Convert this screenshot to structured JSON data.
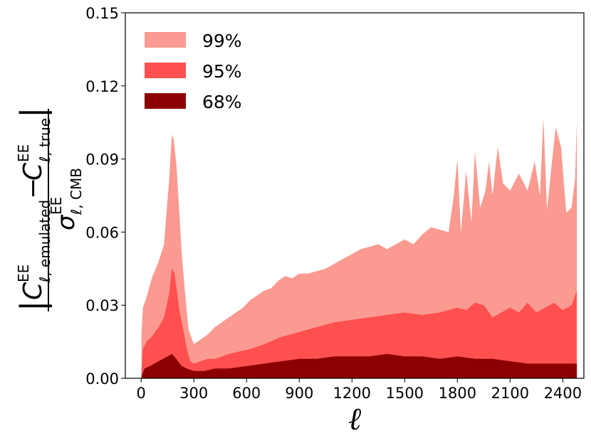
{
  "chart_data": {
    "type": "area",
    "title": "",
    "xlabel": "ℓ",
    "ylabel": {
      "numerator_left": {
        "base": "C",
        "sup": "EE",
        "sub_italic": "ℓ",
        "sub_text": ", emulated"
      },
      "minus": "−",
      "numerator_right": {
        "base": "C",
        "sup": "EE",
        "sub_italic": "ℓ",
        "sub_text": ", true"
      },
      "denominator": {
        "base": "σ",
        "sup": "EE",
        "sub_italic": "ℓ",
        "sub_text": ", CMB"
      },
      "bar": "|"
    },
    "xlim": [
      -90,
      2520
    ],
    "ylim": [
      0,
      0.15
    ],
    "xticks": [
      0,
      300,
      600,
      900,
      1200,
      1500,
      1800,
      2100,
      2400
    ],
    "xtick_labels": [
      "0",
      "300",
      "600",
      "900",
      "1200",
      "1500",
      "1800",
      "2100",
      "2400"
    ],
    "yticks": [
      0,
      0.03,
      0.06,
      0.09,
      0.12,
      0.15
    ],
    "ytick_labels": [
      "0.00",
      "0.03",
      "0.06",
      "0.09",
      "0.12",
      "0.15"
    ],
    "grid": false,
    "legend_position": "top-left",
    "series": [
      {
        "name": "99%",
        "color": "#fa9a90",
        "x": [
          2,
          10,
          30,
          60,
          100,
          130,
          160,
          175,
          185,
          200,
          215,
          230,
          250,
          270,
          300,
          340,
          380,
          420,
          460,
          500,
          540,
          580,
          620,
          660,
          700,
          740,
          780,
          820,
          860,
          900,
          950,
          1000,
          1050,
          1100,
          1150,
          1200,
          1250,
          1300,
          1350,
          1400,
          1450,
          1500,
          1550,
          1600,
          1650,
          1700,
          1750,
          1780,
          1800,
          1820,
          1850,
          1880,
          1900,
          1930,
          1960,
          1980,
          2000,
          2030,
          2060,
          2100,
          2150,
          2200,
          2240,
          2270,
          2290,
          2310,
          2340,
          2360,
          2390,
          2420,
          2450,
          2470,
          2480
        ],
        "values": [
          0.018,
          0.029,
          0.033,
          0.041,
          0.048,
          0.055,
          0.082,
          0.1,
          0.098,
          0.088,
          0.071,
          0.052,
          0.035,
          0.02,
          0.014,
          0.016,
          0.018,
          0.021,
          0.023,
          0.025,
          0.027,
          0.029,
          0.032,
          0.034,
          0.036,
          0.037,
          0.04,
          0.042,
          0.041,
          0.043,
          0.043,
          0.044,
          0.045,
          0.047,
          0.049,
          0.051,
          0.053,
          0.054,
          0.055,
          0.053,
          0.055,
          0.057,
          0.055,
          0.059,
          0.062,
          0.061,
          0.06,
          0.075,
          0.09,
          0.06,
          0.085,
          0.064,
          0.093,
          0.07,
          0.077,
          0.089,
          0.075,
          0.095,
          0.08,
          0.077,
          0.084,
          0.077,
          0.089,
          0.075,
          0.107,
          0.069,
          0.09,
          0.103,
          0.095,
          0.068,
          0.07,
          0.082,
          0.106
        ]
      },
      {
        "name": "95%",
        "color": "#ff5050",
        "x": [
          2,
          10,
          30,
          60,
          100,
          130,
          160,
          175,
          190,
          205,
          220,
          240,
          260,
          280,
          300,
          340,
          380,
          420,
          460,
          500,
          560,
          620,
          700,
          800,
          900,
          1000,
          1100,
          1200,
          1300,
          1400,
          1500,
          1600,
          1700,
          1800,
          1850,
          1900,
          1950,
          2000,
          2050,
          2100,
          2150,
          2200,
          2250,
          2300,
          2350,
          2400,
          2450,
          2480
        ],
        "values": [
          0.003,
          0.012,
          0.015,
          0.017,
          0.021,
          0.025,
          0.035,
          0.045,
          0.043,
          0.035,
          0.027,
          0.02,
          0.012,
          0.007,
          0.006,
          0.007,
          0.008,
          0.008,
          0.009,
          0.01,
          0.011,
          0.012,
          0.014,
          0.017,
          0.019,
          0.021,
          0.023,
          0.024,
          0.025,
          0.026,
          0.027,
          0.026,
          0.027,
          0.029,
          0.028,
          0.031,
          0.03,
          0.025,
          0.027,
          0.029,
          0.027,
          0.031,
          0.027,
          0.029,
          0.031,
          0.028,
          0.03,
          0.036
        ]
      },
      {
        "name": "68%",
        "color": "#8b0000",
        "x": [
          2,
          20,
          50,
          100,
          150,
          175,
          200,
          230,
          260,
          300,
          360,
          420,
          500,
          600,
          700,
          800,
          900,
          1000,
          1100,
          1200,
          1300,
          1400,
          1500,
          1600,
          1700,
          1800,
          1900,
          2000,
          2100,
          2200,
          2300,
          2400,
          2450,
          2480
        ],
        "values": [
          0.001,
          0.004,
          0.005,
          0.007,
          0.009,
          0.01,
          0.008,
          0.005,
          0.004,
          0.003,
          0.003,
          0.004,
          0.004,
          0.005,
          0.006,
          0.007,
          0.008,
          0.008,
          0.009,
          0.009,
          0.009,
          0.01,
          0.009,
          0.009,
          0.008,
          0.009,
          0.008,
          0.008,
          0.007,
          0.006,
          0.006,
          0.006,
          0.006,
          0.006
        ]
      }
    ]
  }
}
